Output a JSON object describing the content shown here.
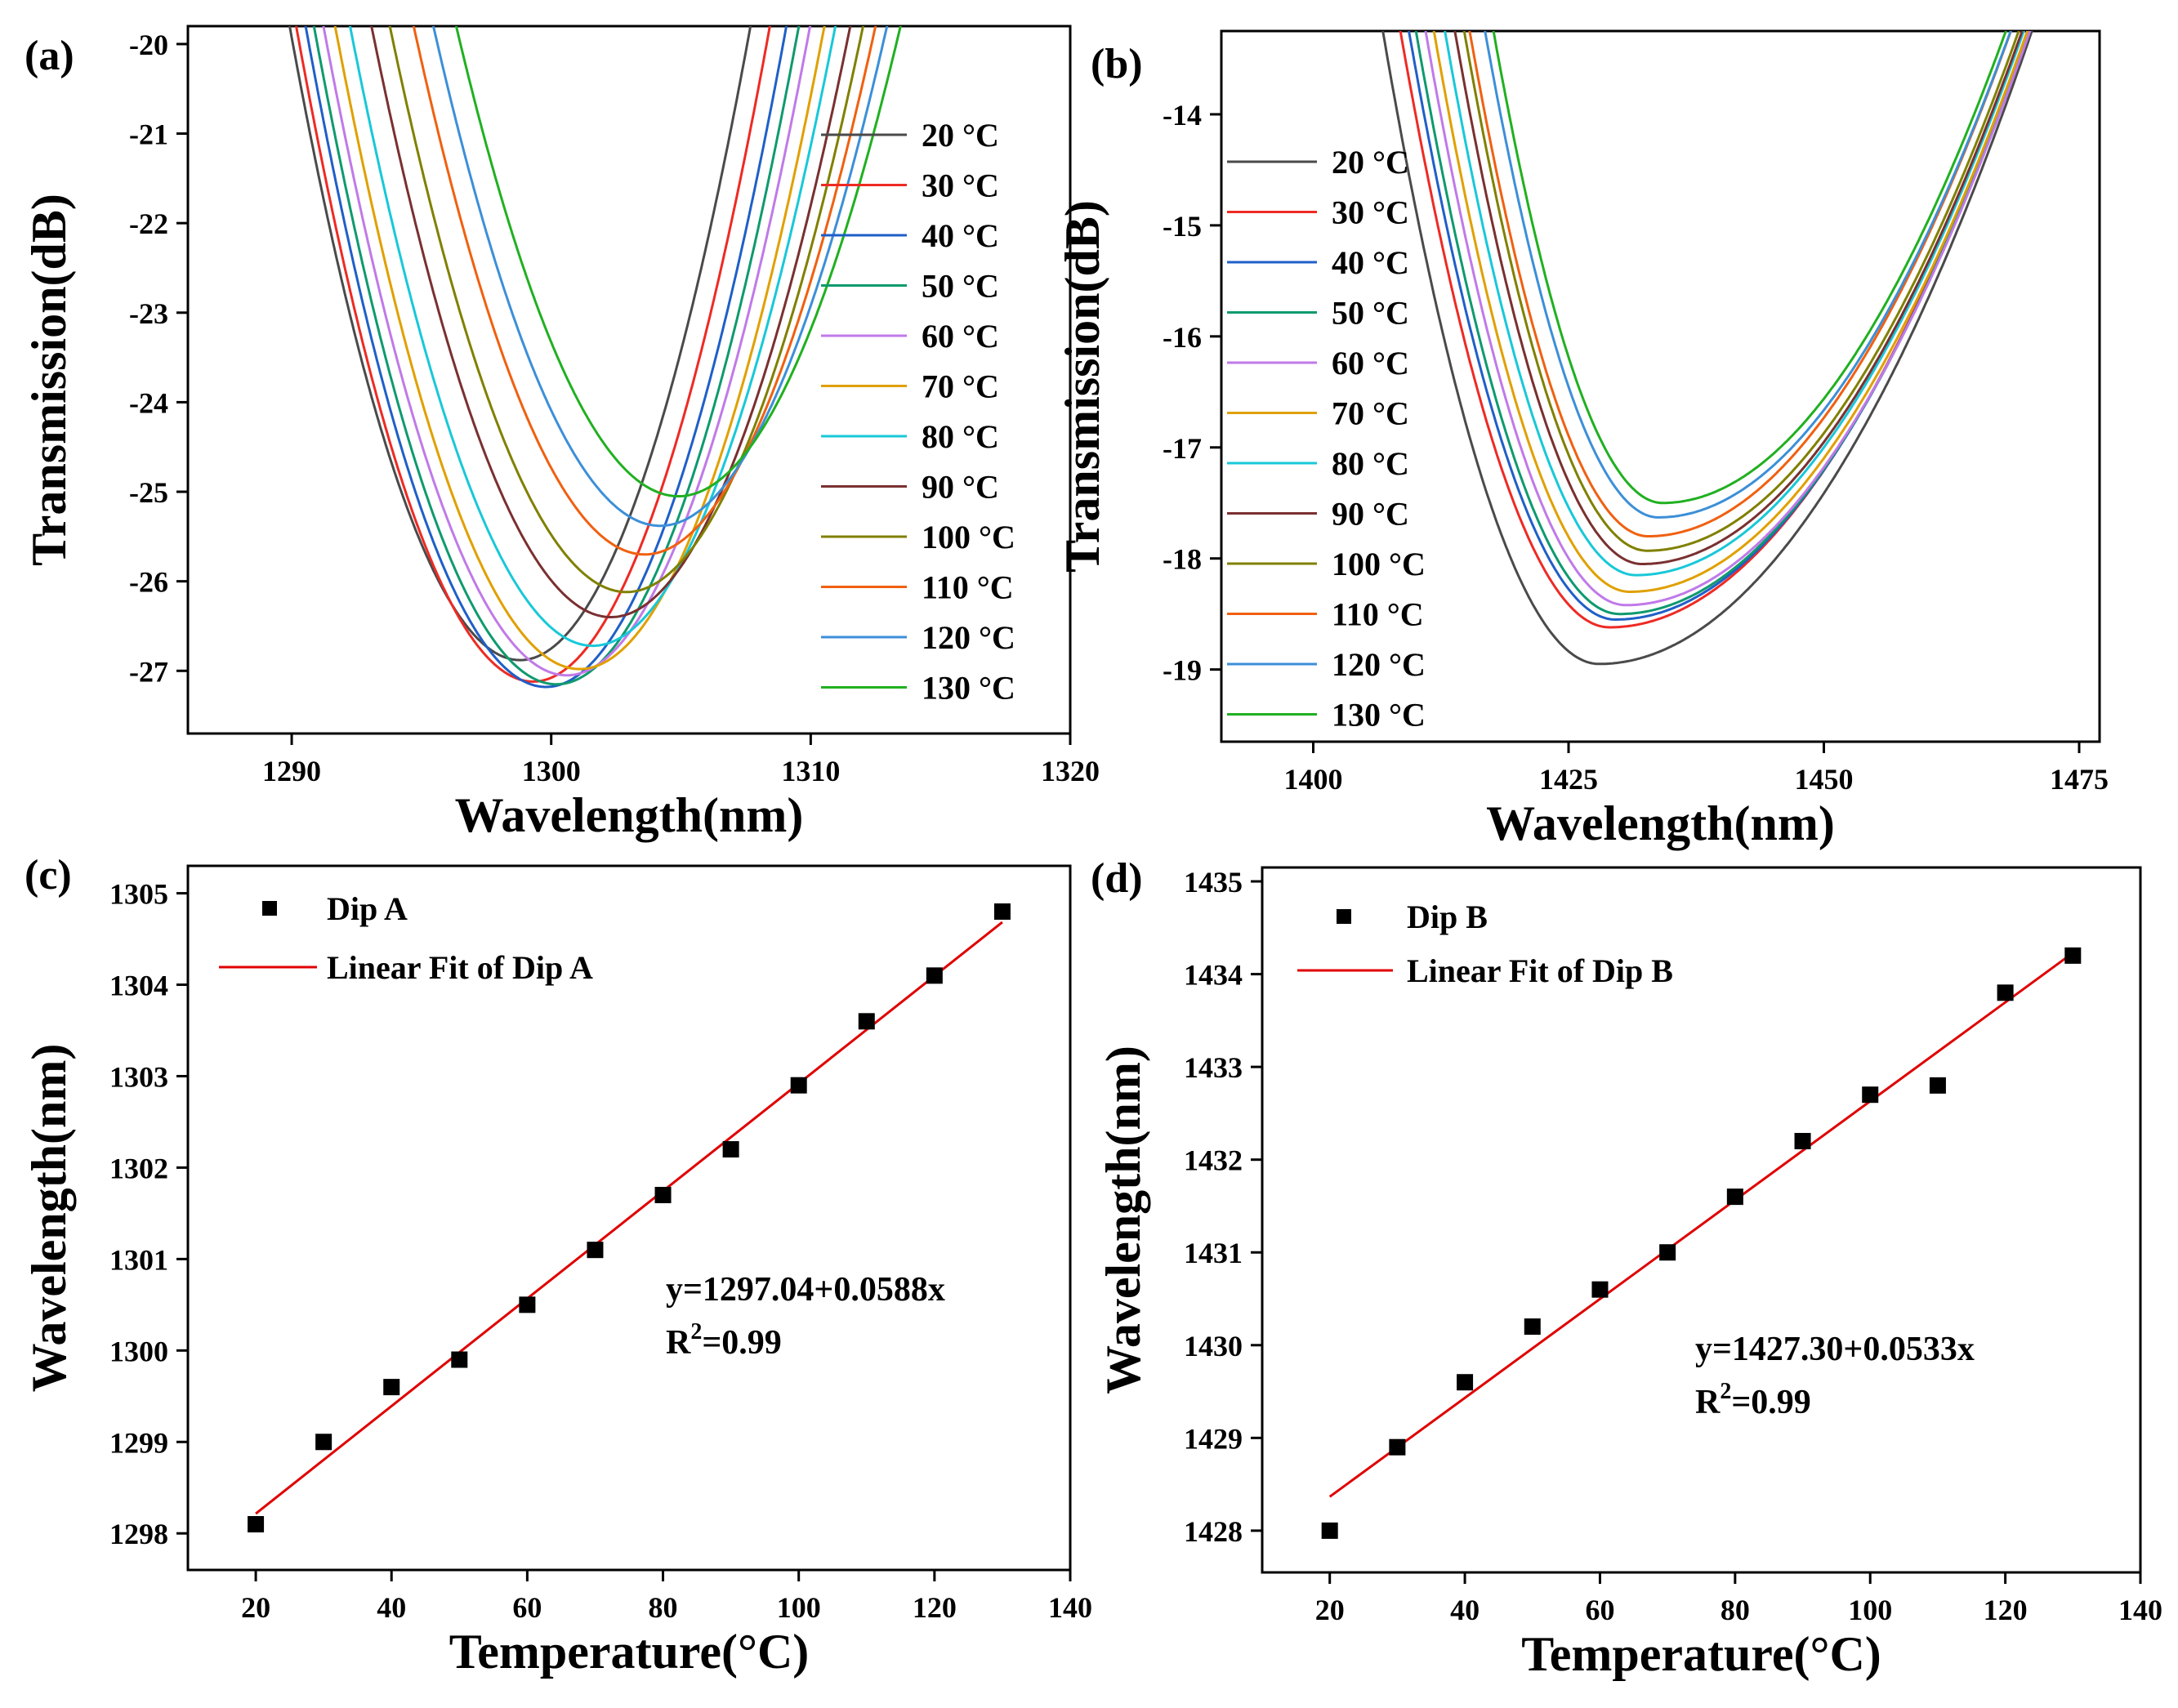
{
  "colors": [
    "#4a4a4a",
    "#ee2a24",
    "#1f5fc8",
    "#0e9a6e",
    "#c07ae8",
    "#e0a000",
    "#18c8d8",
    "#7a3030",
    "#808000",
    "#f06010",
    "#3c8fd8",
    "#20b020"
  ],
  "fit_color": "#e00000",
  "chart_data": [
    {
      "panel": "(a)",
      "type": "line",
      "xlabel": "Wavelength(nm)",
      "ylabel": "Transmission(dB)",
      "xlim": [
        1286,
        1320
      ],
      "ylim": [
        -27.7,
        -19.8
      ],
      "xticks": [
        1290,
        1300,
        1310,
        1320
      ],
      "yticks": [
        -20,
        -21,
        -22,
        -23,
        -24,
        -25,
        -26,
        -27
      ],
      "legend_position": "right",
      "series": [
        {
          "name": "20 °C",
          "center": 1298.8,
          "min": -26.88,
          "half_width": 9.2
        },
        {
          "name": "30 °C",
          "center": 1299.3,
          "min": -27.12,
          "half_width": 9.3
        },
        {
          "name": "40 °C",
          "center": 1299.8,
          "min": -27.18,
          "half_width": 9.4
        },
        {
          "name": "50 °C",
          "center": 1300.2,
          "min": -27.15,
          "half_width": 9.5
        },
        {
          "name": "60 °C",
          "center": 1300.6,
          "min": -27.05,
          "half_width": 9.6
        },
        {
          "name": "70 °C",
          "center": 1301.1,
          "min": -26.98,
          "half_width": 9.7
        },
        {
          "name": "80 °C",
          "center": 1301.6,
          "min": -26.72,
          "half_width": 9.8
        },
        {
          "name": "90 °C",
          "center": 1302.3,
          "min": -26.4,
          "half_width": 9.9
        },
        {
          "name": "100 °C",
          "center": 1302.9,
          "min": -26.12,
          "half_width": 10.0
        },
        {
          "name": "110 °C",
          "center": 1303.6,
          "min": -25.7,
          "half_width": 10.1
        },
        {
          "name": "120 °C",
          "center": 1304.2,
          "min": -25.38,
          "half_width": 10.2
        },
        {
          "name": "130 °C",
          "center": 1304.9,
          "min": -25.05,
          "half_width": 10.3
        }
      ]
    },
    {
      "panel": "(b)",
      "type": "line",
      "xlabel": "Wavelength(nm)",
      "ylabel": "Transmission(dB)",
      "xlim": [
        1391,
        1477
      ],
      "ylim": [
        -19.65,
        -13.25
      ],
      "xticks": [
        1400,
        1425,
        1450,
        1475
      ],
      "yticks": [
        -14,
        -15,
        -16,
        -17,
        -18,
        -19
      ],
      "legend_position": "left",
      "series": [
        {
          "name": "20 °C",
          "center": 1428.0,
          "min": -18.95,
          "left_width": 21.0,
          "right_width": 42.0
        },
        {
          "name": "30 °C",
          "center": 1429.0,
          "min": -18.62,
          "left_width": 20.9,
          "right_width": 41.8
        },
        {
          "name": "40 °C",
          "center": 1429.6,
          "min": -18.55,
          "left_width": 20.8,
          "right_width": 41.6
        },
        {
          "name": "50 °C",
          "center": 1430.0,
          "min": -18.5,
          "left_width": 20.6,
          "right_width": 41.4
        },
        {
          "name": "60 °C",
          "center": 1430.6,
          "min": -18.42,
          "left_width": 20.4,
          "right_width": 41.2
        },
        {
          "name": "70 °C",
          "center": 1431.0,
          "min": -18.3,
          "left_width": 20.2,
          "right_width": 41.0
        },
        {
          "name": "80 °C",
          "center": 1431.6,
          "min": -18.15,
          "left_width": 20.0,
          "right_width": 40.6
        },
        {
          "name": "90 °C",
          "center": 1432.2,
          "min": -18.05,
          "left_width": 19.8,
          "right_width": 40.2
        },
        {
          "name": "100 °C",
          "center": 1432.7,
          "min": -17.93,
          "left_width": 19.6,
          "right_width": 39.8
        },
        {
          "name": "110 °C",
          "center": 1432.8,
          "min": -17.8,
          "left_width": 19.4,
          "right_width": 39.4
        },
        {
          "name": "120 °C",
          "center": 1433.8,
          "min": -17.63,
          "left_width": 19.2,
          "right_width": 39.0
        },
        {
          "name": "130 °C",
          "center": 1434.2,
          "min": -17.5,
          "left_width": 19.0,
          "right_width": 38.6
        }
      ]
    },
    {
      "panel": "(c)",
      "type": "scatter",
      "xlabel": "Temperature(°C)",
      "ylabel": "Wavelength(nm)",
      "xlim": [
        10,
        140
      ],
      "ylim": [
        1297.6,
        1305.3
      ],
      "xticks": [
        20,
        40,
        60,
        80,
        100,
        120,
        140
      ],
      "yticks": [
        1298,
        1299,
        1300,
        1301,
        1302,
        1303,
        1304,
        1305
      ],
      "legend_position": "top-left",
      "series": [
        {
          "name": "Dip A",
          "x": [
            20,
            30,
            40,
            50,
            60,
            70,
            80,
            90,
            100,
            110,
            120,
            130
          ],
          "y": [
            1298.1,
            1299.0,
            1299.6,
            1299.9,
            1300.5,
            1301.1,
            1301.7,
            1302.2,
            1302.9,
            1303.6,
            1304.1,
            1304.8
          ]
        },
        {
          "name": "Linear Fit of Dip A",
          "intercept": 1297.04,
          "slope": 0.0588,
          "x_range": [
            20,
            130
          ]
        }
      ],
      "annotation": {
        "equation": "y=1297.04+0.0588x",
        "r2_prefix": "R",
        "r2_sup": "2",
        "r2_value": "=0.99"
      }
    },
    {
      "panel": "(d)",
      "type": "scatter",
      "xlabel": "Temperature(°C)",
      "ylabel": "Wavelength(nm)",
      "xlim": [
        10,
        140
      ],
      "ylim": [
        1427.55,
        1435.15
      ],
      "xticks": [
        20,
        40,
        60,
        80,
        100,
        120,
        140
      ],
      "yticks": [
        1428,
        1429,
        1430,
        1431,
        1432,
        1433,
        1434,
        1435
      ],
      "legend_position": "top-left",
      "series": [
        {
          "name": "Dip B",
          "x": [
            20,
            30,
            40,
            50,
            60,
            70,
            80,
            90,
            100,
            110,
            120,
            130
          ],
          "y": [
            1428.0,
            1428.9,
            1429.6,
            1430.2,
            1430.6,
            1431.0,
            1431.6,
            1432.2,
            1432.7,
            1432.8,
            1433.8,
            1434.2
          ]
        },
        {
          "name": "Linear Fit of Dip B",
          "intercept": 1427.3,
          "slope": 0.0533,
          "x_range": [
            20,
            130
          ]
        }
      ],
      "annotation": {
        "equation": "y=1427.30+0.0533x",
        "r2_prefix": "R",
        "r2_sup": "2",
        "r2_value": "=0.99"
      }
    }
  ]
}
